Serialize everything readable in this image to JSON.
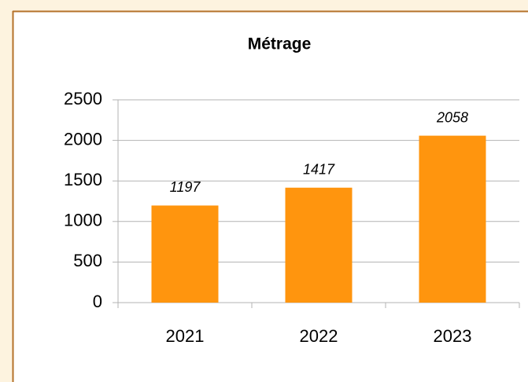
{
  "chart_data": {
    "type": "bar",
    "title": "Métrage",
    "categories": [
      "2021",
      "2022",
      "2023"
    ],
    "values": [
      1197,
      1417,
      2058
    ],
    "color": "#ff950e",
    "ylim": [
      0,
      2500
    ],
    "yticks": [
      0,
      500,
      1000,
      1500,
      2000,
      2500
    ],
    "grid": true
  }
}
